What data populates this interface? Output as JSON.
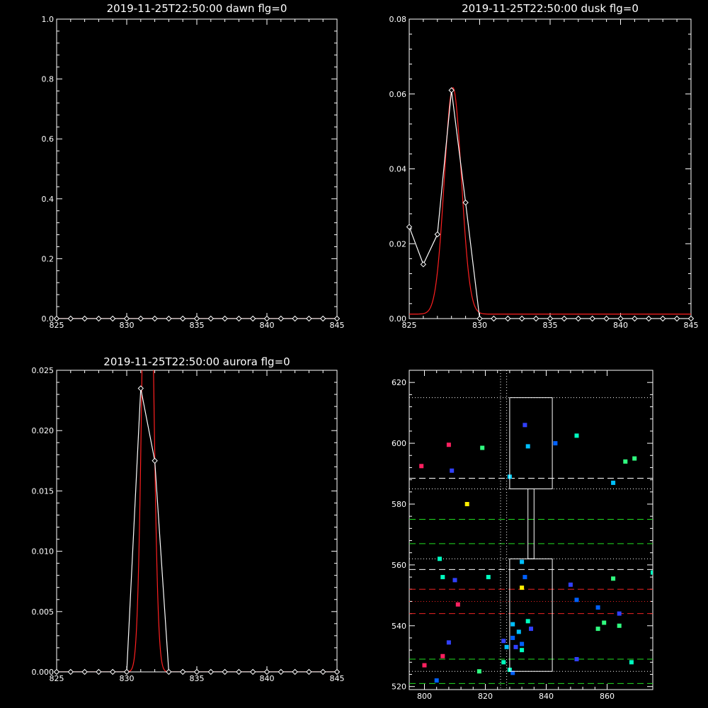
{
  "chart_data": [
    {
      "type": "line",
      "title": "2019-11-25T22:50:00 dawn flg=0",
      "xlim": [
        825,
        845
      ],
      "ylim": [
        0,
        1.0
      ],
      "x_ticks": [
        "825",
        "830",
        "835",
        "840",
        "845"
      ],
      "y_ticks": [
        "0.0",
        "0.2",
        "0.4",
        "0.6",
        "0.8",
        "1.0"
      ],
      "series": [
        {
          "role": "data",
          "color": "#ffffff",
          "x": [
            825,
            826,
            827,
            828,
            829,
            830,
            831,
            832,
            833,
            834,
            835,
            836,
            837,
            838,
            839,
            840,
            841,
            842,
            843,
            844,
            845
          ],
          "y": [
            0,
            0,
            0,
            0,
            0,
            0,
            0,
            0,
            0,
            0,
            0,
            0,
            0,
            0,
            0,
            0,
            0,
            0,
            0,
            0,
            0
          ]
        },
        {
          "role": "fit",
          "color": "#ff2020",
          "x": [
            825,
            845
          ],
          "y": [
            0,
            0
          ]
        }
      ]
    },
    {
      "type": "line",
      "title": "2019-11-25T22:50:00 dusk flg=0",
      "xlim": [
        825,
        845
      ],
      "ylim": [
        0,
        0.08
      ],
      "x_ticks": [
        "825",
        "830",
        "835",
        "840",
        "845"
      ],
      "y_ticks": [
        "0.00",
        "0.02",
        "0.04",
        "0.06",
        "0.08"
      ],
      "series": [
        {
          "role": "data",
          "color": "#ffffff",
          "x": [
            825,
            826,
            827,
            828,
            829,
            830,
            831,
            832,
            833,
            834,
            835,
            836,
            837,
            838,
            839,
            840,
            841,
            842,
            843,
            844,
            845
          ],
          "y": [
            0.0245,
            0.0145,
            0.0225,
            0.061,
            0.031,
            0,
            0,
            0,
            0,
            0,
            0,
            0,
            0,
            0,
            0,
            0,
            0,
            0,
            0,
            0,
            0
          ]
        },
        {
          "role": "fit",
          "color": "#ff2020",
          "gaussian": {
            "amplitude": 0.0605,
            "center": 828.1,
            "sigma": 0.6,
            "baseline": 0.0012
          }
        }
      ]
    },
    {
      "type": "line",
      "title": "2019-11-25T22:50:00 aurora flg=0",
      "xlim": [
        825,
        845
      ],
      "ylim": [
        0,
        0.025
      ],
      "x_ticks": [
        "825",
        "830",
        "835",
        "840",
        "845"
      ],
      "y_ticks": [
        "0.000",
        "0.005",
        "0.010",
        "0.015",
        "0.020",
        "0.025"
      ],
      "series": [
        {
          "role": "data",
          "color": "#ffffff",
          "x": [
            825,
            826,
            827,
            828,
            829,
            830,
            831,
            832,
            833,
            834,
            835,
            836,
            837,
            838,
            839,
            840,
            841,
            842,
            843,
            844,
            845
          ],
          "y": [
            0,
            0,
            0,
            0,
            0,
            0,
            0.0235,
            0.0175,
            0,
            0,
            0,
            0,
            0,
            0,
            0,
            0,
            0,
            0,
            0,
            0,
            0
          ]
        },
        {
          "role": "fit",
          "color": "#ff2020",
          "gaussian": {
            "amplitude": 0.05,
            "center": 831.5,
            "sigma": 0.35,
            "baseline": 0
          }
        }
      ]
    },
    {
      "type": "scatter",
      "title": "",
      "xlim": [
        795,
        875
      ],
      "ylim": [
        519,
        624
      ],
      "x_ticks": [
        "800",
        "820",
        "840",
        "860"
      ],
      "y_ticks": [
        "520",
        "540",
        "560",
        "580",
        "600",
        "620"
      ],
      "boxes": [
        {
          "x0": 828,
          "x1": 842,
          "y0": 585,
          "y1": 615
        },
        {
          "x0": 828,
          "x1": 842,
          "y0": 525,
          "y1": 562
        },
        {
          "x0": 834,
          "x1": 836,
          "y0": 562,
          "y1": 585
        }
      ],
      "hlines": [
        {
          "y": 615,
          "color": "#ffffff",
          "style": "dotted"
        },
        {
          "y": 588.5,
          "color": "#ffffff",
          "style": "dashed"
        },
        {
          "y": 585,
          "color": "#ffffff",
          "style": "dotted"
        },
        {
          "y": 575,
          "color": "#22dd22",
          "style": "dashed"
        },
        {
          "y": 567,
          "color": "#22dd22",
          "style": "dashed"
        },
        {
          "y": 562,
          "color": "#ffffff",
          "style": "dotted"
        },
        {
          "y": 558.5,
          "color": "#ffffff",
          "style": "dashed"
        },
        {
          "y": 552,
          "color": "#ee2222",
          "style": "dashed"
        },
        {
          "y": 548,
          "color": "#ee2222",
          "style": "dotted"
        },
        {
          "y": 544,
          "color": "#ee2222",
          "style": "dashed"
        },
        {
          "y": 529,
          "color": "#22dd22",
          "style": "dashed"
        },
        {
          "y": 525,
          "color": "#ffffff",
          "style": "dotted"
        },
        {
          "y": 521,
          "color": "#22dd22",
          "style": "dashed"
        }
      ],
      "vlines": [
        {
          "x": 825,
          "color": "#ffffff",
          "style": "dotted"
        },
        {
          "x": 827,
          "color": "#ffffff",
          "style": "dotted"
        }
      ],
      "points": [
        {
          "x": 799,
          "y": 592.5,
          "c": "#ff2060"
        },
        {
          "x": 808,
          "y": 599.5,
          "c": "#ff2060"
        },
        {
          "x": 809,
          "y": 591,
          "c": "#3040ff"
        },
        {
          "x": 814,
          "y": 580,
          "c": "#ffee00"
        },
        {
          "x": 819,
          "y": 598.5,
          "c": "#30ff80"
        },
        {
          "x": 828,
          "y": 589,
          "c": "#00d0ff"
        },
        {
          "x": 833,
          "y": 606,
          "c": "#3040ff"
        },
        {
          "x": 834,
          "y": 599,
          "c": "#00c0ff"
        },
        {
          "x": 843,
          "y": 600,
          "c": "#0060ff"
        },
        {
          "x": 850,
          "y": 602.5,
          "c": "#00ffc0"
        },
        {
          "x": 862,
          "y": 587,
          "c": "#00c0ff"
        },
        {
          "x": 866,
          "y": 594,
          "c": "#30ff80"
        },
        {
          "x": 869,
          "y": 595,
          "c": "#30ff80"
        },
        {
          "x": 805,
          "y": 562,
          "c": "#00ffc0"
        },
        {
          "x": 806,
          "y": 556,
          "c": "#00ffc0"
        },
        {
          "x": 810,
          "y": 555,
          "c": "#3040ff"
        },
        {
          "x": 811,
          "y": 547,
          "c": "#ff2060"
        },
        {
          "x": 821,
          "y": 556,
          "c": "#00ffc0"
        },
        {
          "x": 832,
          "y": 561,
          "c": "#00c0ff"
        },
        {
          "x": 833,
          "y": 556,
          "c": "#0060ff"
        },
        {
          "x": 832,
          "y": 552.5,
          "c": "#ffee00"
        },
        {
          "x": 848,
          "y": 553.5,
          "c": "#3040ff"
        },
        {
          "x": 850,
          "y": 548.5,
          "c": "#0060ff"
        },
        {
          "x": 857,
          "y": 546,
          "c": "#0060ff"
        },
        {
          "x": 862,
          "y": 555.5,
          "c": "#30ff80"
        },
        {
          "x": 864,
          "y": 544,
          "c": "#3040ff"
        },
        {
          "x": 875,
          "y": 557.5,
          "c": "#00ffc0"
        },
        {
          "x": 829,
          "y": 540.5,
          "c": "#00c0ff"
        },
        {
          "x": 831,
          "y": 538,
          "c": "#00c0ff"
        },
        {
          "x": 834,
          "y": 541.5,
          "c": "#00ffc0"
        },
        {
          "x": 835,
          "y": 539,
          "c": "#3040ff"
        },
        {
          "x": 829,
          "y": 536,
          "c": "#0060ff"
        },
        {
          "x": 826,
          "y": 535,
          "c": "#3040ff"
        },
        {
          "x": 827,
          "y": 533,
          "c": "#00c0ff"
        },
        {
          "x": 830,
          "y": 533,
          "c": "#3040ff"
        },
        {
          "x": 832,
          "y": 534,
          "c": "#0060ff"
        },
        {
          "x": 832,
          "y": 532,
          "c": "#00ffc0"
        },
        {
          "x": 808,
          "y": 534.5,
          "c": "#3040ff"
        },
        {
          "x": 806,
          "y": 530,
          "c": "#ff2060"
        },
        {
          "x": 800,
          "y": 527,
          "c": "#ff2060"
        },
        {
          "x": 826,
          "y": 528,
          "c": "#00ffc0"
        },
        {
          "x": 828,
          "y": 525.5,
          "c": "#00ffc0"
        },
        {
          "x": 829,
          "y": 524.5,
          "c": "#0060ff"
        },
        {
          "x": 804,
          "y": 522,
          "c": "#0060ff"
        },
        {
          "x": 818,
          "y": 525,
          "c": "#30ff80"
        },
        {
          "x": 850,
          "y": 529,
          "c": "#3040ff"
        },
        {
          "x": 857,
          "y": 539,
          "c": "#30ff80"
        },
        {
          "x": 859,
          "y": 541,
          "c": "#30ff80"
        },
        {
          "x": 864,
          "y": 540,
          "c": "#30ff80"
        },
        {
          "x": 868,
          "y": 528,
          "c": "#00ffc0"
        }
      ]
    }
  ]
}
